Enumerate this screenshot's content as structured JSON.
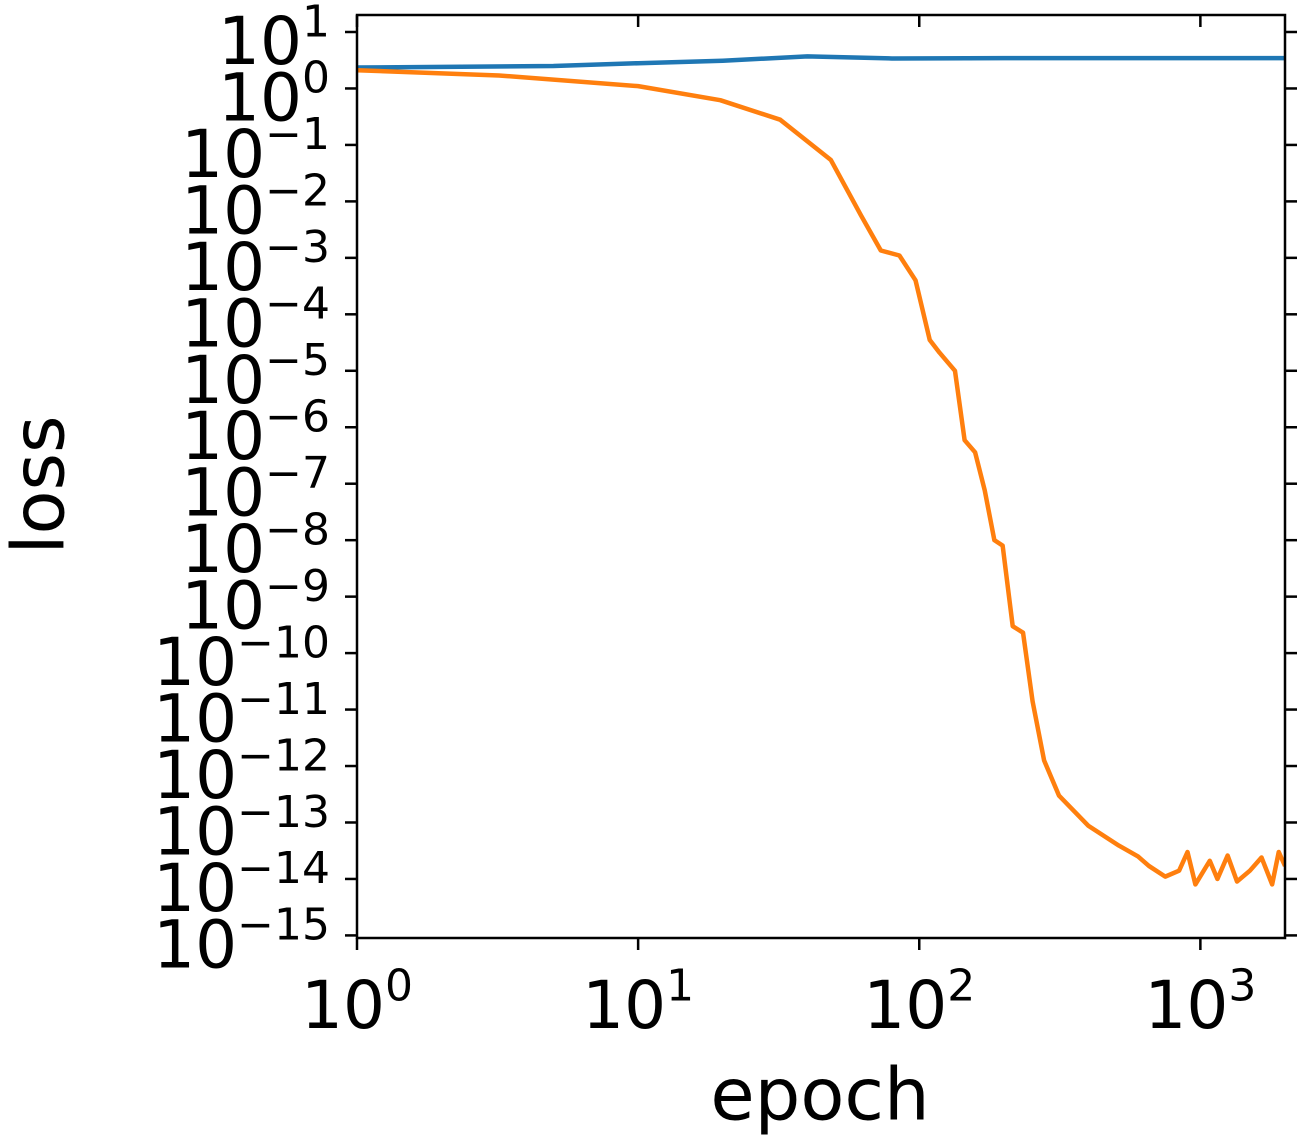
{
  "chart_data": {
    "type": "line",
    "xlabel": "epoch",
    "ylabel": "loss",
    "xscale": "log",
    "yscale": "log",
    "xlim": [
      1,
      2000
    ],
    "ylim": [
      9e-16,
      20
    ],
    "xticks": [
      {
        "value": 1,
        "label": "10^0"
      },
      {
        "value": 10,
        "label": "10^1"
      },
      {
        "value": 100,
        "label": "10^2"
      },
      {
        "value": 1000,
        "label": "10^3"
      }
    ],
    "yticks": [
      {
        "value": 10,
        "label": "10^1"
      },
      {
        "value": 1,
        "label": "10^0"
      },
      {
        "value": 0.1,
        "label": "10^−1"
      },
      {
        "value": 0.01,
        "label": "10^−2"
      },
      {
        "value": 0.001,
        "label": "10^−3"
      },
      {
        "value": 0.0001,
        "label": "10^−4"
      },
      {
        "value": 1e-05,
        "label": "10^−5"
      },
      {
        "value": 1e-06,
        "label": "10^−6"
      },
      {
        "value": 1e-07,
        "label": "10^−7"
      },
      {
        "value": 1e-08,
        "label": "10^−8"
      },
      {
        "value": 1e-09,
        "label": "10^−9"
      },
      {
        "value": 1e-10,
        "label": "10^−10"
      },
      {
        "value": 1e-11,
        "label": "10^−11"
      },
      {
        "value": 1e-12,
        "label": "10^−12"
      },
      {
        "value": 1e-13,
        "label": "10^−13"
      },
      {
        "value": 1e-14,
        "label": "10^−14"
      },
      {
        "value": 1e-15,
        "label": "10^−15"
      }
    ],
    "series": [
      {
        "color": "#1f77b4",
        "x": [
          1,
          5,
          10,
          20,
          40,
          80,
          200,
          1000,
          2000
        ],
        "values": [
          2.35,
          2.5,
          2.8,
          3.1,
          3.7,
          3.4,
          3.45,
          3.45,
          3.45
        ]
      },
      {
        "color": "#ff7f0e",
        "x": [
          1,
          3.2,
          10,
          19.6,
          32,
          48.5,
          62,
          73,
          85,
          97,
          109,
          118,
          134,
          145,
          158,
          171,
          185,
          198,
          215,
          234,
          253,
          278,
          314,
          400,
          513,
          600,
          656,
          750,
          840,
          900,
          960,
          1080,
          1150,
          1250,
          1350,
          1500,
          1650,
          1800,
          1900,
          2000
        ],
        "values": [
          2.1,
          1.7,
          1.1,
          0.62,
          0.28,
          0.054,
          0.0057,
          0.00135,
          0.0011,
          0.0004,
          3.5e-05,
          2.1e-05,
          1e-05,
          5.9e-07,
          3.6e-07,
          7.6e-08,
          1e-08,
          8e-09,
          3e-10,
          2.3e-10,
          1.4e-11,
          1.26e-12,
          3e-13,
          8.7e-14,
          3.9e-14,
          2.5e-14,
          1.7e-14,
          1.1e-14,
          1.4e-14,
          3e-14,
          8e-15,
          2.1e-14,
          1e-14,
          2.6e-14,
          9e-15,
          1.4e-14,
          2.4e-14,
          8e-15,
          3e-14,
          1.7e-14
        ]
      }
    ]
  }
}
